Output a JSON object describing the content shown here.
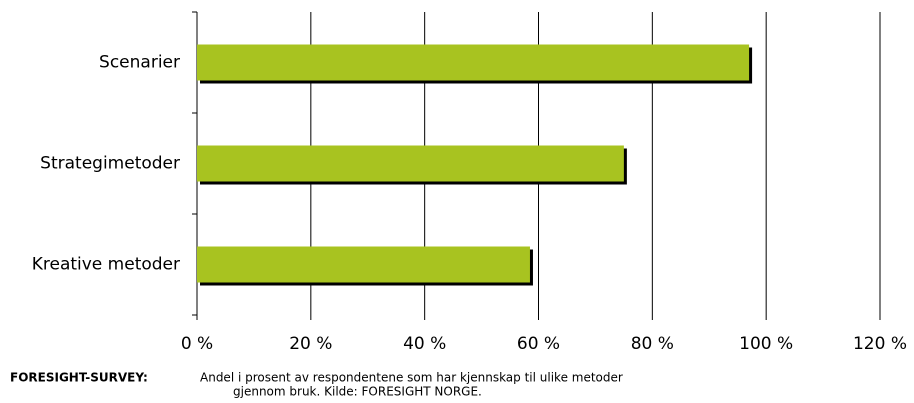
{
  "chart_data": {
    "type": "barh",
    "categories": [
      "Scenarier",
      "Strategimetoder",
      "Kreative metoder"
    ],
    "values": [
      97,
      75,
      58.5
    ],
    "color": "#a8c320",
    "xlim": [
      0,
      120
    ],
    "xticks": [
      {
        "value": 0,
        "label": "0 %"
      },
      {
        "value": 20,
        "label": "20 %"
      },
      {
        "value": 40,
        "label": "40 %"
      },
      {
        "value": 60,
        "label": "60 %"
      },
      {
        "value": 80,
        "label": "80 %"
      },
      {
        "value": 100,
        "label": "100 %"
      },
      {
        "value": 120,
        "label": "120 %"
      }
    ],
    "grid": true,
    "caption": {
      "label": "FORESIGHT-SURVEY:",
      "lines": [
        "Andel i prosent av respondentene som har kjennskap til ulike metoder",
        "gjennom bruk. Kilde: FORESIGHT NORGE."
      ]
    }
  }
}
